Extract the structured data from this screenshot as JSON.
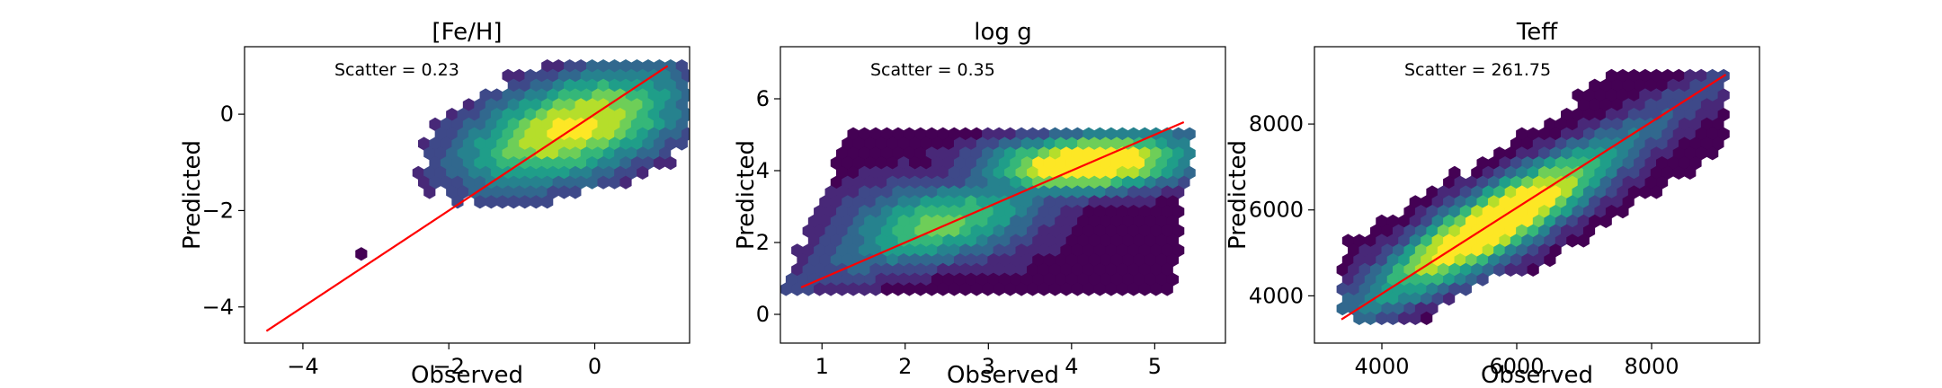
{
  "chart_data": [
    {
      "type": "hexbin",
      "title": "[Fe/H]",
      "xlabel": "Observed",
      "ylabel": "Predicted",
      "xlim": [
        -4.8,
        1.3
      ],
      "ylim": [
        -4.75,
        1.4
      ],
      "xticks": [
        -4,
        -2,
        0
      ],
      "xtick_labels": [
        "−4",
        "−2",
        "0"
      ],
      "yticks": [
        -4,
        -2,
        0
      ],
      "ytick_labels": [
        "−4",
        "−2",
        "0"
      ],
      "annotation": "Scatter = 0.23",
      "fit_line": {
        "x": [
          -4.5,
          1.0
        ],
        "y": [
          -4.5,
          1.0
        ],
        "color": "#ff0000"
      },
      "density_model": {
        "center": [
          -0.3,
          -0.3
        ],
        "spread": [
          1.0,
          0.8
        ],
        "correlation": 0.5,
        "support": {
          "x": [
            -3.6,
            1.3
          ],
          "y": [
            -2.9,
            1.05
          ]
        },
        "outliers": [
          [
            -3.2,
            -2.9
          ]
        ]
      },
      "colormap": "viridis"
    },
    {
      "type": "hexbin",
      "title": "log g",
      "xlabel": "Observed",
      "ylabel": "Predicted",
      "xlim": [
        0.5,
        5.85
      ],
      "ylim": [
        -0.8,
        7.45
      ],
      "xticks": [
        1,
        2,
        3,
        4,
        5
      ],
      "xtick_labels": [
        "1",
        "2",
        "3",
        "4",
        "5"
      ],
      "yticks": [
        0,
        2,
        4,
        6
      ],
      "ytick_labels": [
        "0",
        "2",
        "4",
        "6"
      ],
      "annotation": "Scatter = 0.35",
      "fit_line": {
        "x": [
          0.75,
          5.35
        ],
        "y": [
          0.75,
          5.35
        ],
        "color": "#ff0000"
      },
      "density_model": {
        "center": [
          4.2,
          4.2
        ],
        "spread": [
          0.6,
          0.45
        ],
        "secondary_center": [
          2.4,
          2.6
        ],
        "support": {
          "x": [
            0.75,
            5.4
          ],
          "y": [
            0.6,
            5.2
          ]
        },
        "parallelogram_shift": 0.35
      },
      "colormap": "viridis"
    },
    {
      "type": "hexbin",
      "title": "Teff",
      "xlabel": "Observed",
      "ylabel": "Predicted",
      "xlim": [
        3000,
        9600
      ],
      "ylim": [
        2900,
        9800
      ],
      "xticks": [
        4000,
        6000,
        8000
      ],
      "xtick_labels": [
        "4000",
        "6000",
        "8000"
      ],
      "yticks": [
        4000,
        6000,
        8000
      ],
      "ytick_labels": [
        "4000",
        "6000",
        "8000"
      ],
      "annotation": "Scatter = 261.75",
      "fit_line": {
        "x": [
          3400,
          9100
        ],
        "y": [
          3450,
          9150
        ],
        "color": "#ff0000"
      },
      "density_model": {
        "center": [
          5700,
          5700
        ],
        "spread": [
          900,
          800
        ],
        "correlation": 0.75,
        "support": {
          "x": [
            3400,
            9100
          ],
          "y": [
            3400,
            9200
          ]
        }
      },
      "colormap": "viridis"
    }
  ]
}
